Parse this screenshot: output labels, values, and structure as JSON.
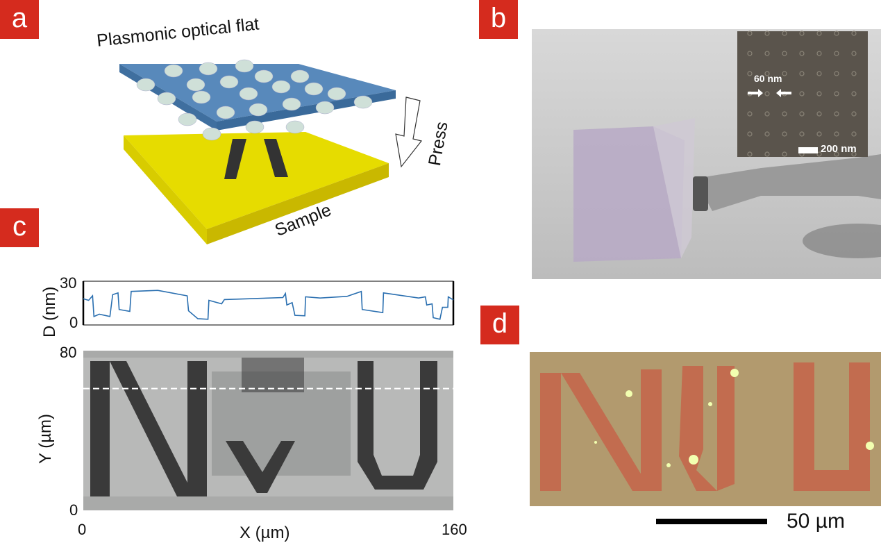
{
  "panels": {
    "a": {
      "label": "a",
      "top_text": "Plasmonic optical flat",
      "bottom_text": "Sample",
      "arrow_text": "Press"
    },
    "b": {
      "label": "b",
      "inset": {
        "feature_label": "60 nm",
        "scalebar_label": "200 nm"
      }
    },
    "c": {
      "label": "c"
    },
    "d": {
      "label": "d",
      "scalebar_label": "50 µm"
    }
  },
  "colors": {
    "label_bg": "#d52b1e",
    "profile_line": "#2a6fb0",
    "flat_blue": "#4a7fb5",
    "sample_yellow": "#e6dc00"
  },
  "chart_data": {
    "type": "line",
    "profile": {
      "ylabel": "D (nm)",
      "yticks": [
        "0",
        "30"
      ],
      "ylim": [
        0,
        30
      ],
      "xlim": [
        0,
        160
      ],
      "x": [
        0,
        0.6,
        2.3,
        4,
        4.6,
        6.9,
        11.5,
        12.7,
        15,
        15.5,
        20.1,
        20.7,
        32.2,
        44.9,
        45.5,
        49.5,
        53.9,
        54.3,
        59.8,
        61,
        86.3,
        87.4,
        88,
        90.3,
        91.5,
        95.8,
        96.1,
        102.4,
        114,
        120.2,
        120.6,
        129.5,
        129.8,
        145,
        147.9,
        148.5,
        150.8,
        151.3,
        154.2,
        155.3,
        157.6,
        157.8,
        160
      ],
      "y": [
        18,
        17.7,
        16.9,
        20,
        5.8,
        7.4,
        5.8,
        20.8,
        22,
        10.6,
        9.3,
        23,
        23.7,
        20,
        9.7,
        4.3,
        3.9,
        16.9,
        14.5,
        17.4,
        18.8,
        21.6,
        13.7,
        15.3,
        6.6,
        6.3,
        19.3,
        18.5,
        19.6,
        23,
        10.6,
        8.5,
        22,
        18.5,
        19.3,
        13.7,
        14.5,
        5,
        3.9,
        12.1,
        12.1,
        19.3,
        17.2
      ]
    },
    "image": {
      "xlabel": "X (µm)",
      "ylabel": "Y (µm)",
      "xticks": [
        "0",
        "160"
      ],
      "yticks": [
        "0",
        "80"
      ],
      "xlim": [
        0,
        160
      ],
      "ylim": [
        0,
        80
      ],
      "dashed_line_y": 61
    }
  }
}
